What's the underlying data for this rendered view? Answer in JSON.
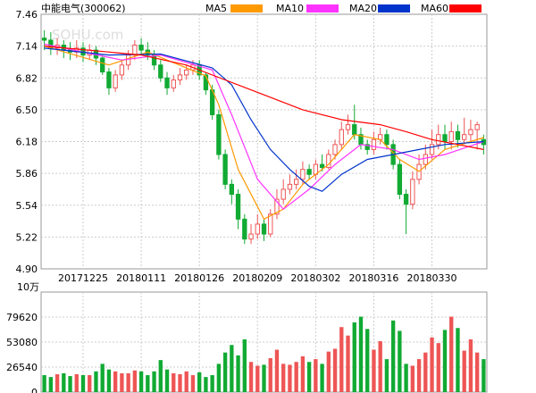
{
  "header": {
    "title": "中能电气(300062)",
    "legend": [
      {
        "name": "MA5",
        "color": "#ff9900"
      },
      {
        "name": "MA10",
        "color": "#ff33ff"
      },
      {
        "name": "MA20",
        "color": "#0033cc"
      },
      {
        "name": "MA60",
        "color": "#ff0000"
      }
    ]
  },
  "watermark": "SOHU.com",
  "colors": {
    "up": "#ee5555",
    "down": "#11aa33",
    "grid": "#cccccc",
    "frame": "#999999"
  },
  "chart_data": [
    {
      "type": "candlestick",
      "ylim": [
        4.9,
        7.46
      ],
      "y_ticks": [
        "7.46",
        "7.14",
        "6.82",
        "6.50",
        "6.18",
        "5.86",
        "5.54",
        "5.22",
        "4.90"
      ],
      "x_ticks": [
        "20171225",
        "20180111",
        "20180126",
        "20180209",
        "20180302",
        "20180316",
        "20180330"
      ],
      "x_tick_index": [
        6,
        15,
        24,
        33,
        42,
        51,
        60
      ],
      "n_days": 69,
      "candles": [
        [
          7.22,
          7.2,
          7.3,
          7.1
        ],
        [
          7.2,
          7.12,
          7.28,
          7.05
        ],
        [
          7.12,
          7.15,
          7.22,
          7.05
        ],
        [
          7.15,
          7.1,
          7.2,
          7.02
        ],
        [
          7.1,
          7.08,
          7.18,
          7.0
        ],
        [
          7.08,
          7.12,
          7.2,
          7.02
        ],
        [
          7.12,
          7.05,
          7.18,
          6.98
        ],
        [
          7.05,
          7.1,
          7.16,
          7.0
        ],
        [
          7.1,
          7.02,
          7.14,
          6.95
        ],
        [
          7.02,
          6.88,
          7.05,
          6.85
        ],
        [
          6.88,
          6.72,
          6.92,
          6.65
        ],
        [
          6.72,
          6.85,
          6.9,
          6.68
        ],
        [
          6.85,
          6.95,
          7.0,
          6.8
        ],
        [
          6.95,
          7.05,
          7.1,
          6.9
        ],
        [
          7.05,
          7.15,
          7.2,
          7.0
        ],
        [
          7.15,
          7.1,
          7.22,
          7.05
        ],
        [
          7.1,
          7.05,
          7.18,
          7.0
        ],
        [
          7.05,
          6.95,
          7.1,
          6.9
        ],
        [
          6.95,
          6.82,
          7.0,
          6.78
        ],
        [
          6.82,
          6.72,
          6.88,
          6.65
        ],
        [
          6.72,
          6.8,
          6.85,
          6.68
        ],
        [
          6.8,
          6.85,
          6.92,
          6.75
        ],
        [
          6.85,
          6.9,
          6.95,
          6.8
        ],
        [
          6.9,
          6.95,
          7.0,
          6.85
        ],
        [
          6.95,
          6.85,
          7.0,
          6.8
        ],
        [
          6.85,
          6.7,
          6.88,
          6.65
        ],
        [
          6.7,
          6.45,
          6.75,
          6.4
        ],
        [
          6.45,
          6.05,
          6.5,
          6.0
        ],
        [
          6.05,
          5.75,
          6.1,
          5.7
        ],
        [
          5.75,
          5.65,
          5.8,
          5.55
        ],
        [
          5.65,
          5.4,
          5.7,
          5.3
        ],
        [
          5.4,
          5.2,
          5.45,
          5.15
        ],
        [
          5.2,
          5.25,
          5.35,
          5.15
        ],
        [
          5.25,
          5.35,
          5.45,
          5.2
        ],
        [
          5.35,
          5.25,
          5.4,
          5.18
        ],
        [
          5.25,
          5.45,
          5.5,
          5.22
        ],
        [
          5.45,
          5.6,
          5.7,
          5.4
        ],
        [
          5.6,
          5.7,
          5.8,
          5.55
        ],
        [
          5.7,
          5.75,
          5.85,
          5.65
        ],
        [
          5.75,
          5.8,
          5.9,
          5.7
        ],
        [
          5.8,
          5.9,
          5.98,
          5.75
        ],
        [
          5.9,
          5.85,
          5.95,
          5.8
        ],
        [
          5.85,
          5.95,
          6.0,
          5.8
        ],
        [
          5.95,
          5.92,
          6.05,
          5.88
        ],
        [
          5.92,
          6.05,
          6.1,
          5.9
        ],
        [
          6.05,
          6.15,
          6.2,
          6.0
        ],
        [
          6.15,
          6.3,
          6.38,
          6.1
        ],
        [
          6.3,
          6.35,
          6.45,
          6.25
        ],
        [
          6.35,
          6.25,
          6.55,
          6.2
        ],
        [
          6.25,
          6.15,
          6.32,
          6.1
        ],
        [
          6.15,
          6.1,
          6.2,
          6.05
        ],
        [
          6.1,
          6.2,
          6.28,
          6.05
        ],
        [
          6.2,
          6.25,
          6.32,
          6.15
        ],
        [
          6.25,
          6.15,
          6.3,
          6.1
        ],
        [
          6.15,
          5.95,
          6.2,
          5.9
        ],
        [
          5.95,
          5.65,
          6.0,
          5.6
        ],
        [
          5.65,
          5.55,
          5.7,
          5.25
        ],
        [
          5.55,
          5.8,
          5.88,
          5.5
        ],
        [
          5.8,
          5.95,
          6.05,
          5.75
        ],
        [
          5.95,
          6.05,
          6.15,
          5.9
        ],
        [
          6.05,
          6.15,
          6.3,
          6.0
        ],
        [
          6.15,
          6.25,
          6.35,
          6.1
        ],
        [
          6.25,
          6.18,
          6.35,
          6.1
        ],
        [
          6.18,
          6.28,
          6.38,
          6.1
        ],
        [
          6.28,
          6.2,
          6.35,
          6.12
        ],
        [
          6.2,
          6.25,
          6.42,
          6.15
        ],
        [
          6.25,
          6.3,
          6.4,
          6.18
        ],
        [
          6.3,
          6.35,
          6.38,
          6.1
        ],
        [
          6.2,
          6.15,
          6.25,
          6.05
        ]
      ],
      "ma": {
        "MA5": [
          [
            0,
            7.14
          ],
          [
            10,
            6.95
          ],
          [
            16,
            7.08
          ],
          [
            22,
            6.92
          ],
          [
            25,
            6.84
          ],
          [
            27,
            6.55
          ],
          [
            30,
            5.9
          ],
          [
            34,
            5.4
          ],
          [
            37,
            5.5
          ],
          [
            40,
            5.75
          ],
          [
            44,
            5.95
          ],
          [
            48,
            6.25
          ],
          [
            52,
            6.2
          ],
          [
            55,
            6.0
          ],
          [
            58,
            5.88
          ],
          [
            62,
            6.1
          ],
          [
            68,
            6.22
          ]
        ],
        "MA10": [
          [
            0,
            7.16
          ],
          [
            12,
            7.0
          ],
          [
            18,
            7.05
          ],
          [
            26,
            6.9
          ],
          [
            29,
            6.45
          ],
          [
            33,
            5.8
          ],
          [
            37,
            5.5
          ],
          [
            41,
            5.7
          ],
          [
            45,
            5.95
          ],
          [
            49,
            6.15
          ],
          [
            54,
            6.1
          ],
          [
            58,
            6.0
          ],
          [
            62,
            6.05
          ],
          [
            68,
            6.18
          ]
        ],
        "MA20": [
          [
            0,
            7.12
          ],
          [
            10,
            7.05
          ],
          [
            18,
            7.06
          ],
          [
            26,
            6.92
          ],
          [
            29,
            6.75
          ],
          [
            32,
            6.4
          ],
          [
            35,
            6.1
          ],
          [
            38,
            5.9
          ],
          [
            41,
            5.73
          ],
          [
            43,
            5.68
          ],
          [
            46,
            5.85
          ],
          [
            50,
            6.0
          ],
          [
            54,
            6.05
          ],
          [
            58,
            6.1
          ],
          [
            62,
            6.15
          ],
          [
            68,
            6.18
          ]
        ],
        "MA60": [
          [
            0,
            7.14
          ],
          [
            15,
            7.05
          ],
          [
            22,
            6.95
          ],
          [
            28,
            6.8
          ],
          [
            34,
            6.65
          ],
          [
            40,
            6.5
          ],
          [
            46,
            6.4
          ],
          [
            52,
            6.35
          ],
          [
            56,
            6.28
          ],
          [
            60,
            6.2
          ],
          [
            64,
            6.15
          ],
          [
            68,
            6.1
          ]
        ]
      }
    },
    {
      "type": "bar",
      "title": "10万",
      "ylim": [
        0,
        106160
      ],
      "y_ticks": [
        "79620",
        "53080",
        "26540",
        "0"
      ],
      "y_tick_values": [
        79620,
        53080,
        26540,
        0
      ],
      "volumes": [
        18000,
        16000,
        19000,
        20000,
        17000,
        19000,
        18000,
        18000,
        22000,
        30000,
        24000,
        22000,
        20000,
        20000,
        23000,
        22000,
        18000,
        22000,
        34000,
        24000,
        20000,
        19000,
        22000,
        18000,
        21000,
        16000,
        18000,
        30000,
        42000,
        50000,
        39000,
        56000,
        32000,
        28000,
        29000,
        36000,
        45000,
        30000,
        29000,
        32000,
        38000,
        32000,
        35000,
        30000,
        43000,
        46000,
        69000,
        60000,
        74000,
        80000,
        67000,
        45000,
        54000,
        35000,
        76000,
        65000,
        30000,
        28000,
        35000,
        42000,
        58000,
        52000,
        66000,
        80000,
        68000,
        44000,
        56000,
        42000,
        35000
      ]
    }
  ]
}
